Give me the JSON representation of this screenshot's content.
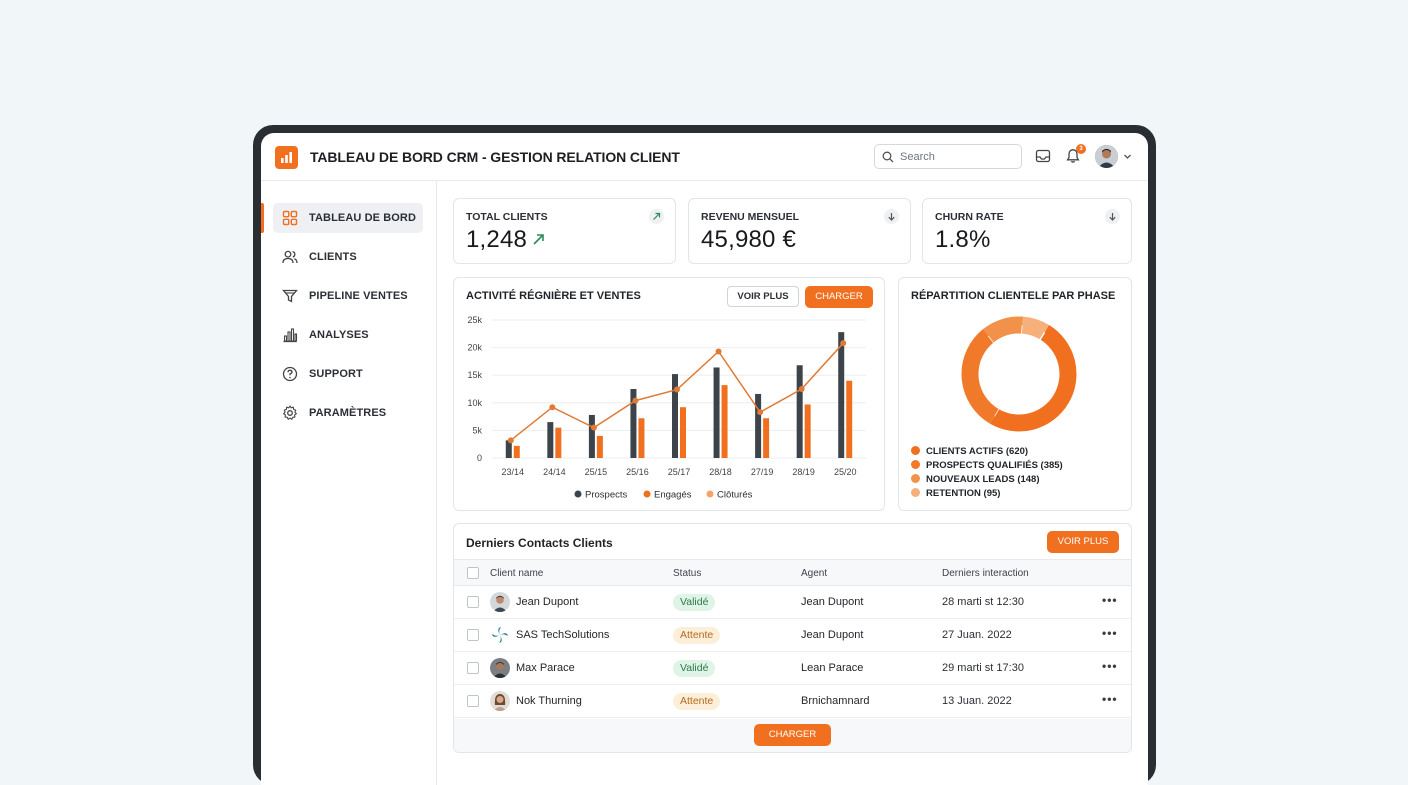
{
  "header": {
    "title": "TABLEAU DE BORD CRM - GESTION RELATION CLIENT",
    "search_placeholder": "Search",
    "notification_count": "3"
  },
  "sidebar": {
    "items": [
      {
        "label": "TABLEAU DE BORD",
        "icon": "grid-icon",
        "active": true
      },
      {
        "label": "CLIENTS",
        "icon": "users-icon"
      },
      {
        "label": "PIPELINE VENTES",
        "icon": "funnel-icon"
      },
      {
        "label": "ANALYSES",
        "icon": "bar-chart-icon"
      },
      {
        "label": "SUPPORT",
        "icon": "help-circle-icon"
      },
      {
        "label": "PARAMÈTRES",
        "icon": "gear-icon"
      }
    ]
  },
  "kpis": [
    {
      "label": "TOTAL CLIENTS",
      "value": "1,248",
      "trend": "up"
    },
    {
      "label": "REVENU MENSUEL",
      "value": "45,980 €",
      "trend": "down"
    },
    {
      "label": "CHURN RATE",
      "value": "1.8%",
      "trend": "down"
    }
  ],
  "activity": {
    "title": "ACTIVITÉ RÉGNIÈRE ET VENTES",
    "btn_more": "VOIR PLUS",
    "btn_load": "CHARGER"
  },
  "chart_data": [
    {
      "type": "bar",
      "title": "ACTIVITÉ RÉGNIÈRE ET VENTES",
      "categories": [
        "23/14",
        "24/14",
        "25/15",
        "25/16",
        "25/17",
        "28/18",
        "27/19",
        "28/19",
        "25/20"
      ],
      "ylim": [
        0,
        25000
      ],
      "yticks": [
        "0",
        "5k",
        "10k",
        "15k",
        "20k",
        "25k"
      ],
      "series": [
        {
          "name": "Prospects",
          "kind": "bar",
          "color": "#3d434b",
          "values": [
            3200,
            6500,
            7800,
            12500,
            15200,
            16400,
            11600,
            16800,
            22800
          ]
        },
        {
          "name": "Engagés",
          "kind": "bar",
          "color": "#f07020",
          "values": [
            2200,
            5500,
            4000,
            7200,
            9200,
            13200,
            7200,
            9700,
            14000
          ]
        },
        {
          "name": "Clôturés",
          "kind": "line",
          "color": "#e07a35",
          "values": [
            3200,
            9200,
            5500,
            10400,
            12400,
            19300,
            8300,
            12500,
            20800
          ]
        }
      ],
      "legend": "bottom",
      "grid": true
    },
    {
      "type": "pie",
      "title": "RÉPARTITION CLIENTELE PAR PHASE",
      "donut": true,
      "slices": [
        {
          "label": "CLIENTS ACTIFS (620)",
          "value": 620,
          "color": "#f07020"
        },
        {
          "label": "PROSPECTS QUALIFIÉS (385)",
          "value": 385,
          "color": "#f07a2a"
        },
        {
          "label": "NOUVEAUX LEADS (148)",
          "value": 148,
          "color": "#f2914a"
        },
        {
          "label": "RETENTION (95)",
          "value": 95,
          "color": "#f6b07c"
        }
      ]
    }
  ],
  "contacts": {
    "title": "Derniers Contacts Clients",
    "btn_more": "VOIR PLUS",
    "btn_load": "CHARGER",
    "columns": [
      "Client name",
      "Status",
      "Agent",
      "Derniers interaction"
    ],
    "rows": [
      {
        "name": "Jean Dupont",
        "status": "Validé",
        "status_type": "ok",
        "agent": "Jean Dupont",
        "date": "28 marti st 12:30",
        "avatar": "person-avatar"
      },
      {
        "name": "SAS TechSolutions",
        "status": "Attente",
        "status_type": "wait",
        "agent": "Jean Dupont",
        "date": "27 Juan. 2022",
        "avatar": "company-logo"
      },
      {
        "name": "Max Parace",
        "status": "Validé",
        "status_type": "ok",
        "agent": "Lean Parace",
        "date": "29 marti st 17:30",
        "avatar": "person-avatar"
      },
      {
        "name": "Nok Thurning",
        "status": "Attente",
        "status_type": "wait",
        "agent": "Brnichamnard",
        "date": "13 Juan. 2022",
        "avatar": "person-avatar"
      }
    ],
    "more_label": "•••"
  }
}
